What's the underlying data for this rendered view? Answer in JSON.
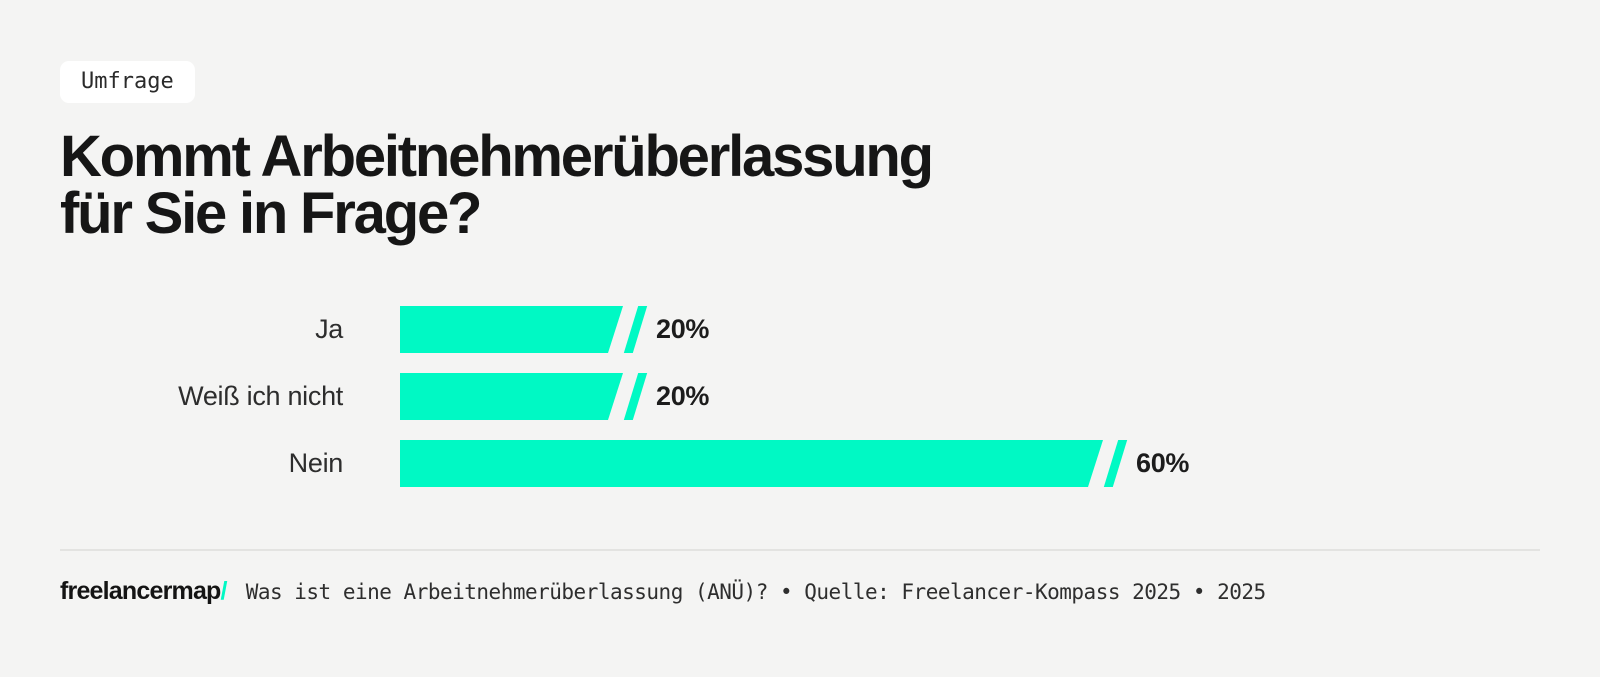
{
  "page": {
    "background": "#f4f4f3",
    "accent": "#00f9c4"
  },
  "badge": {
    "label": "Umfrage"
  },
  "title": {
    "line1": "Kommt Arbeitnehmerüberlassung",
    "line2": "für Sie in Frage?"
  },
  "chart_data": {
    "type": "bar",
    "orientation": "horizontal",
    "title": "Kommt Arbeitnehmerüberlassung für Sie in Frage?",
    "categories": [
      "Ja",
      "Weiß ich nicht",
      "Nein"
    ],
    "values": [
      20,
      20,
      60
    ],
    "value_labels": [
      "20%",
      "20%",
      "60%"
    ],
    "unit": "%",
    "xlim": [
      0,
      100
    ],
    "bar_color": "#00f9c4",
    "grid": false,
    "legend": false,
    "value_label_position": "right-of-bar"
  },
  "footer": {
    "logo_text": "freelancermap",
    "logo_slash": "/",
    "source_text": "Was ist eine Arbeitnehmerüberlassung (ANÜ)? • Quelle: Freelancer-Kompass 2025 • 2025"
  }
}
